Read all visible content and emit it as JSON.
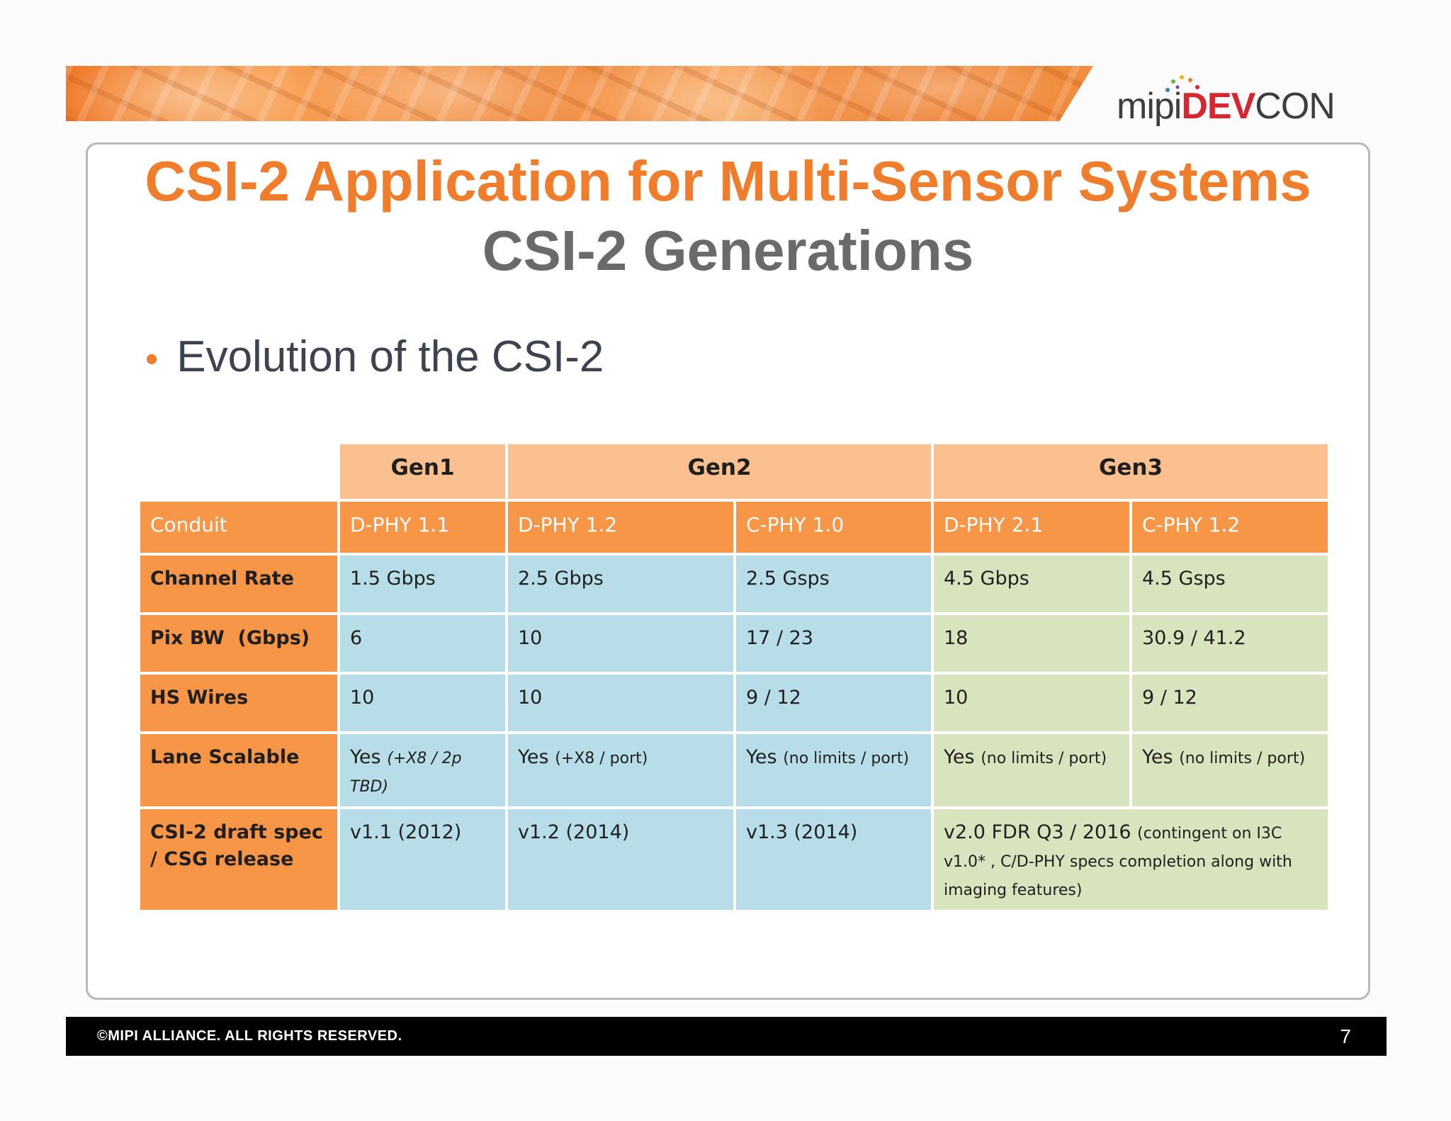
{
  "logo": {
    "part1": "mipi",
    "part2": "DEV",
    "part3": "CON"
  },
  "slide": {
    "title": "CSI-2 Application for Multi-Sensor Systems",
    "subtitle": "CSI-2 Generations",
    "bullet": "Evolution of the CSI-2"
  },
  "table": {
    "generations": [
      "Gen1",
      "Gen2",
      "Gen3"
    ],
    "conduit": {
      "label": "Conduit",
      "values": [
        "D-PHY 1.1",
        "D-PHY 1.2",
        "C-PHY 1.0",
        "D-PHY 2.1",
        "C-PHY 1.2"
      ]
    },
    "rows": [
      {
        "label": "Channel Rate",
        "values": [
          "1.5 Gbps",
          "2.5 Gbps",
          "2.5 Gsps",
          "4.5 Gbps",
          "4.5 Gsps"
        ]
      },
      {
        "label": "Pix BW  (Gbps)",
        "values": [
          "6",
          "10",
          "17 / 23",
          "18",
          "30.9 / 41.2"
        ]
      },
      {
        "label": "HS Wires",
        "values": [
          "10",
          "10",
          "9 / 12",
          "10",
          "9 / 12"
        ]
      }
    ],
    "lane_scalable": {
      "label": "Lane Scalable",
      "gen1_main": "Yes",
      "gen1_note": "(+X8 / 2p TBD)",
      "gen2a_main": "Yes",
      "gen2a_note": "(+X8 /  port)",
      "gen2b_main": "Yes",
      "gen2b_note": "(no limits / port)",
      "gen3a_main": "Yes",
      "gen3a_note": "(no limits / port)",
      "gen3b_main": "Yes",
      "gen3b_note": "(no limits / port)"
    },
    "release": {
      "label": "CSI-2 draft spec / CSG release",
      "gen1": "v1.1 (2012)",
      "gen2a": "v1.2 (2014)",
      "gen2b": "v1.3 (2014)",
      "gen3_main": "v2.0 FDR Q3 / 2016",
      "gen3_note": "(contingent on I3C v1.0* , C/D-PHY specs completion along with imaging features)"
    }
  },
  "footer": {
    "copyright": "©MIPI ALLIANCE. ALL RIGHTS RESERVED.",
    "page_number": "7"
  }
}
